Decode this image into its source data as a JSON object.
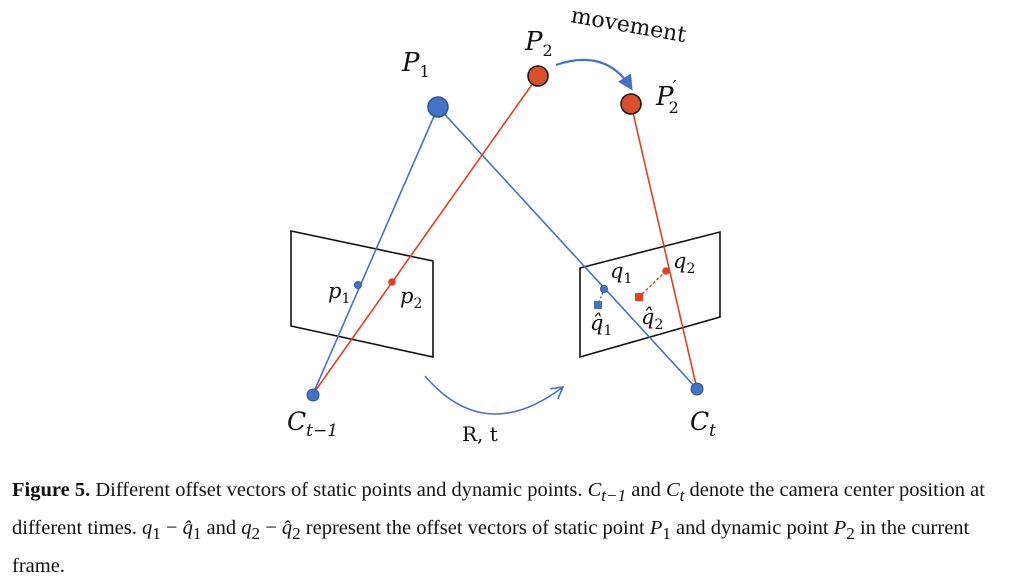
{
  "diagram": {
    "labels": {
      "P1": "P",
      "P1_sub": "1",
      "P2": "P",
      "P2_sub": "2",
      "P2prime": "P",
      "P2prime_sup": "′",
      "P2prime_sub": "2",
      "movement": "movement",
      "p1": "p",
      "p1_sub": "1",
      "p2": "p",
      "p2_sub": "2",
      "q1": "q",
      "q1_sub": "1",
      "q2": "q",
      "q2_sub": "2",
      "q1hat": "q̂",
      "q1hat_sub": "1",
      "q2hat": "q̂",
      "q2hat_sub": "2",
      "Ct1": "C",
      "Ct1_sub": "t−1",
      "Ct": "C",
      "Ct_sub": "t",
      "Rt": "R, t"
    },
    "colors": {
      "blue": "#4472c4",
      "red": "#e0401e",
      "red_point": "#d9512c",
      "outline": "#1f3864",
      "frame": "#111111"
    }
  },
  "caption": {
    "figure_label": "Figure 5.",
    "text1": " Different offset vectors of static points and dynamic points. ",
    "c1": "C",
    "c1_sub": "t−1",
    "and1": " and ",
    "c2": "C",
    "c2_sub": "t",
    "text2": " denote the camera center position at different times. ",
    "q1": "q",
    "q1_sub": "1",
    "minus1": " − ",
    "q1hat": "q̂",
    "q1hat_sub": "1",
    "and2": " and ",
    "q2": "q",
    "q2_sub": "2",
    "minus2": " − ",
    "q2hat": "q̂",
    "q2hat_sub": "2",
    "text3": " represent the offset vectors of static point ",
    "P1": "P",
    "P1_sub": "1",
    "and3": " and dynamic point ",
    "P2": "P",
    "P2_sub": "2",
    "text4": " in the current frame."
  }
}
